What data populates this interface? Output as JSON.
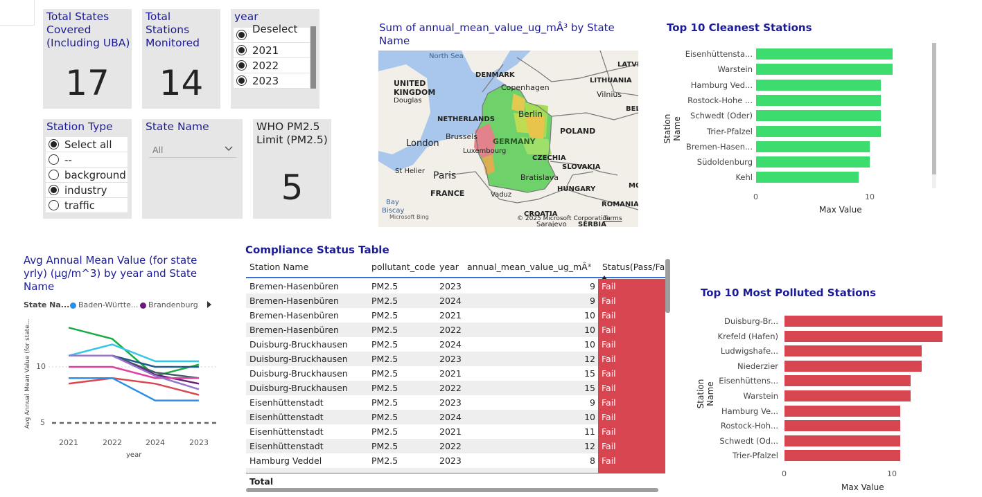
{
  "cards": {
    "states": {
      "title": "Total States Covered (Including UBA)",
      "value": "17"
    },
    "stations": {
      "title": "Total Stations Monitored",
      "value": "14"
    },
    "who": {
      "title": "WHO PM2.5 Limit (PM2.5)",
      "value": "5"
    }
  },
  "year_slicer": {
    "title": "year",
    "items": [
      {
        "label": "Deselect ...",
        "selected": true
      },
      {
        "label": "2021",
        "selected": true
      },
      {
        "label": "2022",
        "selected": true
      },
      {
        "label": "2023",
        "selected": true
      }
    ]
  },
  "station_type_slicer": {
    "title": "Station Type",
    "items": [
      {
        "label": "Select all",
        "selected": true
      },
      {
        "label": "--",
        "selected": false
      },
      {
        "label": "background",
        "selected": false
      },
      {
        "label": "industry",
        "selected": true
      },
      {
        "label": "traffic",
        "selected": false
      }
    ]
  },
  "state_slicer": {
    "title": "State Name",
    "value": "All"
  },
  "map": {
    "title": "Sum of annual_mean_value_ug_mÂ³ by State Name",
    "copyright": "© 2025 Microsoft Corporation",
    "terms": "Terms",
    "bing": "Microsoft Bing",
    "labels": {
      "north_sea": "North Sea",
      "denmark": "DENMARK",
      "uk": "UNITED KINGDOM",
      "douglas": "Douglas",
      "copenhagen": "Copenhagen",
      "lithuania": "LITHUANIA",
      "vilnius": "Vilnius",
      "latvia": "LATVI",
      "bel": "BEL",
      "netherlands": "NETHERLANDS",
      "berlin": "Berlin",
      "london": "London",
      "brussels": "Brussels",
      "germany": "GERMANY",
      "poland": "POLAND",
      "luxembourg": "Luxembourg",
      "st_helier": "St Helier",
      "czechia": "CZECHIA",
      "slovakia": "SLOVAKIA",
      "paris": "Paris",
      "bratislava": "Bratislava",
      "mo": "MO",
      "hungary": "HUNGARY",
      "france": "FRANCE",
      "vaduz": "Vaduz",
      "bay": "Bay",
      "biscay": "Biscay",
      "croatia": "CROATIA",
      "romania": "ROMANIA",
      "sarajevo": "Sarajevo",
      "serbia": "SERBIA"
    }
  },
  "cleanest": {
    "title": "Top 10 Cleanest Stations",
    "ylabel": "Station Name",
    "xlabel": "Max Value",
    "ticks": [
      "0",
      "10"
    ]
  },
  "polluted": {
    "title": "Top 10 Most Polluted Stations",
    "ylabel": "Station Name",
    "xlabel": "Max Value",
    "ticks": [
      "0",
      "10"
    ]
  },
  "line": {
    "title": "Avg Annual Mean Value (for state yrly) (µg/m^3) by year and State Name",
    "legend_title": "State Na...",
    "legend": [
      {
        "name": "Baden-Württe...",
        "color": "#2b8fe8"
      },
      {
        "name": "Brandenburg",
        "color": "#6a1b7a"
      }
    ],
    "ylabel": "Avg Annual Mean Value (for state...",
    "xlabel": "year",
    "yticks": [
      "5",
      "10"
    ]
  },
  "table": {
    "title": "Compliance Status Table",
    "columns": [
      "Station Name",
      "pollutant_code",
      "year",
      "annual_mean_value_ug_mÂ³",
      "Status(Pass/Fail)"
    ],
    "rows": [
      [
        "Bremen-Hasenbüren",
        "PM2.5",
        "2023",
        "9",
        "Fail"
      ],
      [
        "Bremen-Hasenbüren",
        "PM2.5",
        "2024",
        "9",
        "Fail"
      ],
      [
        "Bremen-Hasenbüren",
        "PM2.5",
        "2021",
        "10",
        "Fail"
      ],
      [
        "Bremen-Hasenbüren",
        "PM2.5",
        "2022",
        "10",
        "Fail"
      ],
      [
        "Duisburg-Bruckhausen",
        "PM2.5",
        "2024",
        "10",
        "Fail"
      ],
      [
        "Duisburg-Bruckhausen",
        "PM2.5",
        "2023",
        "12",
        "Fail"
      ],
      [
        "Duisburg-Bruckhausen",
        "PM2.5",
        "2021",
        "15",
        "Fail"
      ],
      [
        "Duisburg-Bruckhausen",
        "PM2.5",
        "2022",
        "15",
        "Fail"
      ],
      [
        "Eisenhüttenstadt",
        "PM2.5",
        "2023",
        "9",
        "Fail"
      ],
      [
        "Eisenhüttenstadt",
        "PM2.5",
        "2024",
        "10",
        "Fail"
      ],
      [
        "Eisenhüttenstadt",
        "PM2.5",
        "2021",
        "11",
        "Fail"
      ],
      [
        "Eisenhüttenstadt",
        "PM2.5",
        "2022",
        "12",
        "Fail"
      ],
      [
        "Hamburg Veddel",
        "PM2.5",
        "2023",
        "8",
        "Fail"
      ]
    ],
    "total_label": "Total"
  },
  "chart_data": [
    {
      "type": "bar",
      "title": "Top 10 Cleanest Stations",
      "orientation": "horizontal",
      "categories": [
        "Eisenhüttensta...",
        "Warstein",
        "Hamburg Ved...",
        "Rostock-Hohe ...",
        "Schwedt (Oder)",
        "Trier-Pfalzel",
        "Bremen-Hasen...",
        "Südoldenburg",
        "Kehl"
      ],
      "values": [
        12,
        12,
        11,
        11,
        11,
        11,
        10,
        10,
        9
      ],
      "xlabel": "Max Value",
      "ylabel": "Station Name",
      "xlim": [
        0,
        15
      ],
      "color": "#3ddc6f"
    },
    {
      "type": "bar",
      "title": "Top 10 Most Polluted Stations",
      "orientation": "horizontal",
      "categories": [
        "Duisburg-Br...",
        "Krefeld (Hafen)",
        "Ludwigshafe...",
        "Niederzier",
        "Eisenhüttens...",
        "Warstein",
        "Hamburg Ve...",
        "Rostock-Hoh...",
        "Schwedt (Od...",
        "Trier-Pfalzel"
      ],
      "values": [
        15,
        15,
        13,
        13,
        12,
        12,
        11,
        11,
        11,
        11
      ],
      "xlabel": "Max Value",
      "ylabel": "Station Name",
      "xlim": [
        0,
        15
      ],
      "color": "#d64550"
    },
    {
      "type": "line",
      "title": "Avg Annual Mean Value (for state yrly) (µg/m^3) by year and State Name",
      "x": [
        "2021",
        "2022",
        "2024",
        "2023"
      ],
      "ylim": [
        4,
        14
      ],
      "reference_line": 5,
      "series": [
        {
          "color": "#1aab40",
          "values": [
            13.5,
            12.5,
            9.2,
            10.2
          ]
        },
        {
          "color": "#35c6e8",
          "values": [
            11,
            12,
            10.5,
            10.5
          ]
        },
        {
          "color": "#1e5f8a",
          "values": [
            11,
            11,
            10,
            10
          ]
        },
        {
          "color": "#455a64",
          "values": [
            11,
            11,
            9.5,
            9
          ]
        },
        {
          "name": "Brandenburg",
          "color": "#6a1b7a",
          "values": [
            11,
            11,
            9.3,
            8.5
          ]
        },
        {
          "color": "#e040a0",
          "values": [
            10,
            10,
            9,
            9
          ]
        },
        {
          "color": "#9575cd",
          "values": [
            11,
            11,
            9.2,
            8
          ]
        },
        {
          "color": "#d9474f",
          "values": [
            8.5,
            9,
            8.5,
            7.5
          ]
        },
        {
          "name": "Baden-Württe...",
          "color": "#2b8fe8",
          "values": [
            9,
            9,
            7,
            7
          ]
        }
      ]
    }
  ]
}
